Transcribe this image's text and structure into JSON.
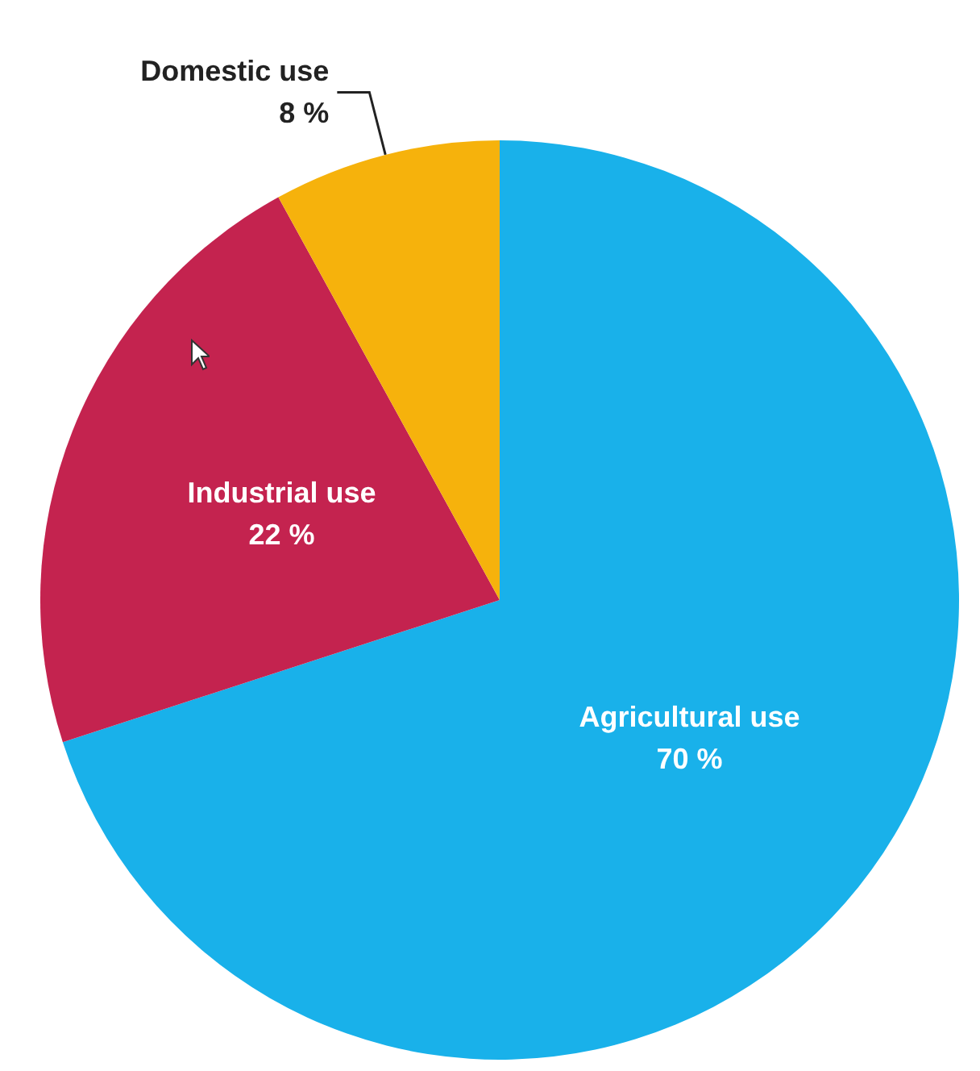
{
  "chart_data": {
    "type": "pie",
    "categories": [
      "Agricultural use",
      "Industrial use",
      "Domestic use"
    ],
    "values": [
      70,
      22,
      8
    ],
    "colors": [
      "#19b1ea",
      "#c4234f",
      "#f6b20c"
    ],
    "value_labels": [
      "70 %",
      "22 %",
      "8 %"
    ]
  }
}
